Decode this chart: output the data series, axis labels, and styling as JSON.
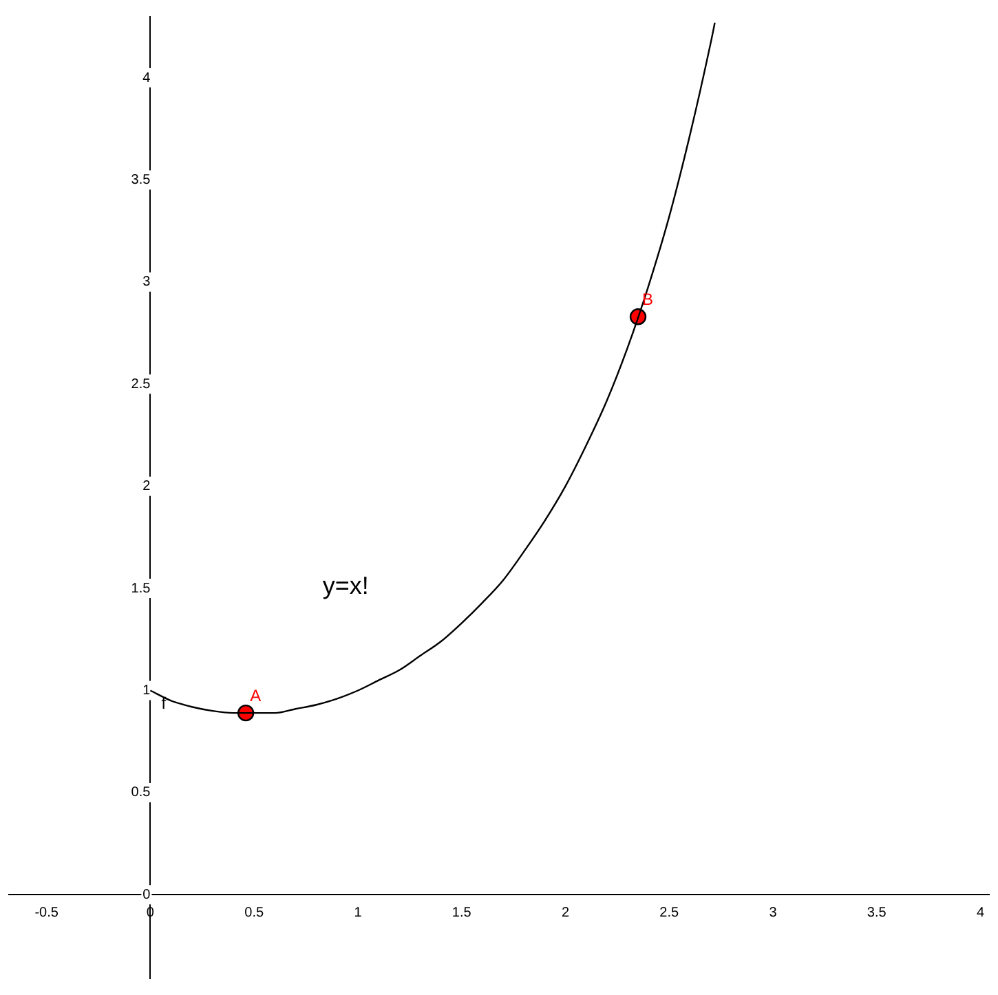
{
  "chart_data": {
    "type": "line",
    "annotations": [
      "y=x!"
    ],
    "xlim": [
      -0.68,
      4.04
    ],
    "ylim": [
      -0.41,
      4.3
    ],
    "xticks": [
      -0.5,
      0,
      0.5,
      1,
      1.5,
      2,
      2.5,
      3,
      3.5,
      4
    ],
    "yticks": [
      0,
      0.5,
      1,
      1.5,
      2,
      2.5,
      3,
      3.5,
      4
    ],
    "grid": false,
    "legend": false,
    "marker": "none",
    "line_style": "solid",
    "series": [
      {
        "name": "f",
        "color": "#000000",
        "x": [
          0,
          0.1,
          0.2,
          0.3,
          0.4,
          0.5,
          0.6,
          0.7,
          0.8,
          0.9,
          1,
          1.1,
          1.2,
          1.3,
          1.4,
          1.5,
          1.6,
          1.7,
          1.8,
          1.9,
          2,
          2.1,
          2.2,
          2.3,
          2.4,
          2.5,
          2.6,
          2.7,
          2.72
        ],
        "values": [
          1,
          0.95,
          0.92,
          0.9,
          0.89,
          0.89,
          0.89,
          0.91,
          0.93,
          0.96,
          1,
          1.05,
          1.1,
          1.17,
          1.24,
          1.33,
          1.43,
          1.54,
          1.68,
          1.83,
          2,
          2.2,
          2.42,
          2.68,
          2.98,
          3.32,
          3.72,
          4.17,
          4.27
        ]
      },
      {
        "name": "A",
        "type": "scatter",
        "color": "#ff0000",
        "marker": "circle",
        "x": [
          0.46
        ],
        "values": [
          0.89
        ]
      },
      {
        "name": "B",
        "type": "scatter",
        "color": "#ff0000",
        "marker": "circle",
        "x": [
          2.35
        ],
        "values": [
          2.83
        ]
      }
    ]
  }
}
